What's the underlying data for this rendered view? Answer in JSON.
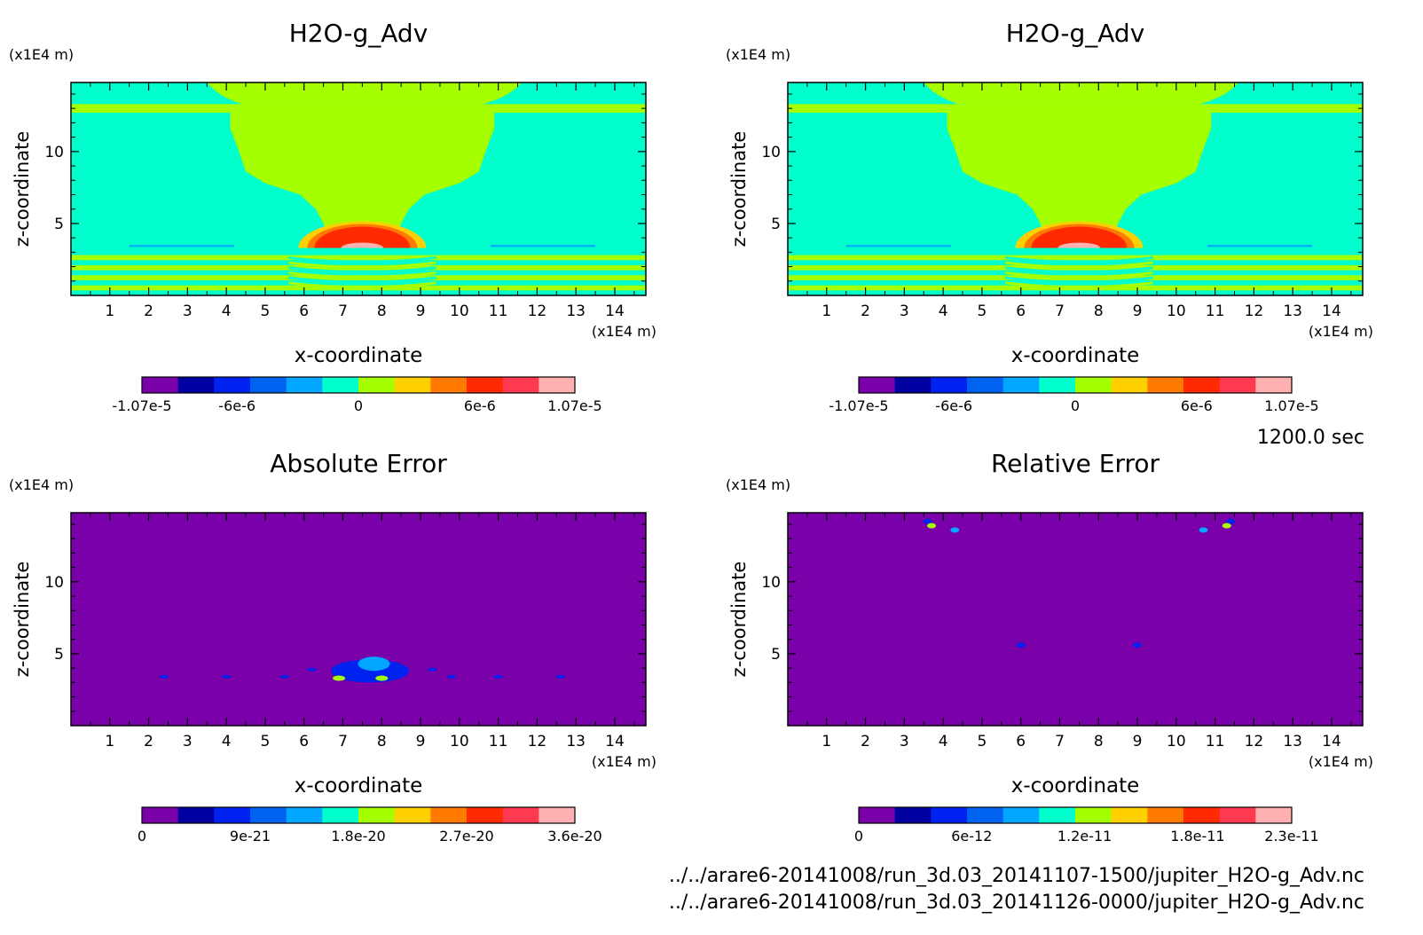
{
  "time_label": "1200.0 sec",
  "files": [
    "../../arare6-20141008/run_3d.03_20141107-1500/jupiter_H2O-g_Adv.nc",
    "../../arare6-20141008/run_3d.03_20141126-0000/jupiter_H2O-g_Adv.nc"
  ],
  "colors": {
    "ramp": [
      "#7a00aa",
      "#0000a0",
      "#0022f0",
      "#0062f0",
      "#00a6ff",
      "#00ffcc",
      "#a6ff00",
      "#ffd000",
      "#ff7a00",
      "#ff2a00",
      "#ff3a50",
      "#ffb0b0"
    ]
  },
  "chart_data": [
    {
      "type": "heatmap",
      "title": "H2O-g_Adv",
      "xlabel": "x-coordinate",
      "ylabel": "z-coordinate",
      "x_unit": "(x1E4 m)",
      "y_unit": "(x1E4 m)",
      "xlim": [
        0,
        14.8
      ],
      "ylim": [
        0,
        14.8
      ],
      "x_ticks": [
        "1",
        "2",
        "3",
        "4",
        "5",
        "6",
        "7",
        "8",
        "9",
        "10",
        "11",
        "12",
        "13",
        "14"
      ],
      "y_ticks": [
        "5",
        "10"
      ],
      "colorbar_ticks": [
        "-1.07e-5",
        "-6e-6",
        "0",
        "6e-6",
        "1.07e-5"
      ],
      "colorbar_range": [
        -1.07e-05,
        1.07e-05
      ],
      "pattern": "field"
    },
    {
      "type": "heatmap",
      "title": "H2O-g_Adv",
      "xlabel": "x-coordinate",
      "ylabel": "z-coordinate",
      "x_unit": "(x1E4 m)",
      "y_unit": "(x1E4 m)",
      "xlim": [
        0,
        14.8
      ],
      "ylim": [
        0,
        14.8
      ],
      "x_ticks": [
        "1",
        "2",
        "3",
        "4",
        "5",
        "6",
        "7",
        "8",
        "9",
        "10",
        "11",
        "12",
        "13",
        "14"
      ],
      "y_ticks": [
        "5",
        "10"
      ],
      "colorbar_ticks": [
        "-1.07e-5",
        "-6e-6",
        "0",
        "6e-6",
        "1.07e-5"
      ],
      "colorbar_range": [
        -1.07e-05,
        1.07e-05
      ],
      "pattern": "field"
    },
    {
      "type": "heatmap",
      "title": "Absolute Error",
      "xlabel": "x-coordinate",
      "ylabel": "z-coordinate",
      "x_unit": "(x1E4 m)",
      "y_unit": "(x1E4 m)",
      "xlim": [
        0,
        14.8
      ],
      "ylim": [
        0,
        14.8
      ],
      "x_ticks": [
        "1",
        "2",
        "3",
        "4",
        "5",
        "6",
        "7",
        "8",
        "9",
        "10",
        "11",
        "12",
        "13",
        "14"
      ],
      "y_ticks": [
        "5",
        "10"
      ],
      "colorbar_ticks": [
        "0",
        "9e-21",
        "1.8e-20",
        "2.7e-20",
        "3.6e-20"
      ],
      "colorbar_range": [
        0,
        3.6e-20
      ],
      "pattern": "abs"
    },
    {
      "type": "heatmap",
      "title": "Relative Error",
      "xlabel": "x-coordinate",
      "ylabel": "z-coordinate",
      "x_unit": "(x1E4 m)",
      "y_unit": "(x1E4 m)",
      "xlim": [
        0,
        14.8
      ],
      "ylim": [
        0,
        14.8
      ],
      "x_ticks": [
        "1",
        "2",
        "3",
        "4",
        "5",
        "6",
        "7",
        "8",
        "9",
        "10",
        "11",
        "12",
        "13",
        "14"
      ],
      "y_ticks": [
        "5",
        "10"
      ],
      "colorbar_ticks": [
        "0",
        "6e-12",
        "1.2e-11",
        "1.8e-11",
        "2.3e-11"
      ],
      "colorbar_range": [
        0,
        2.3e-11
      ],
      "pattern": "rel"
    }
  ]
}
